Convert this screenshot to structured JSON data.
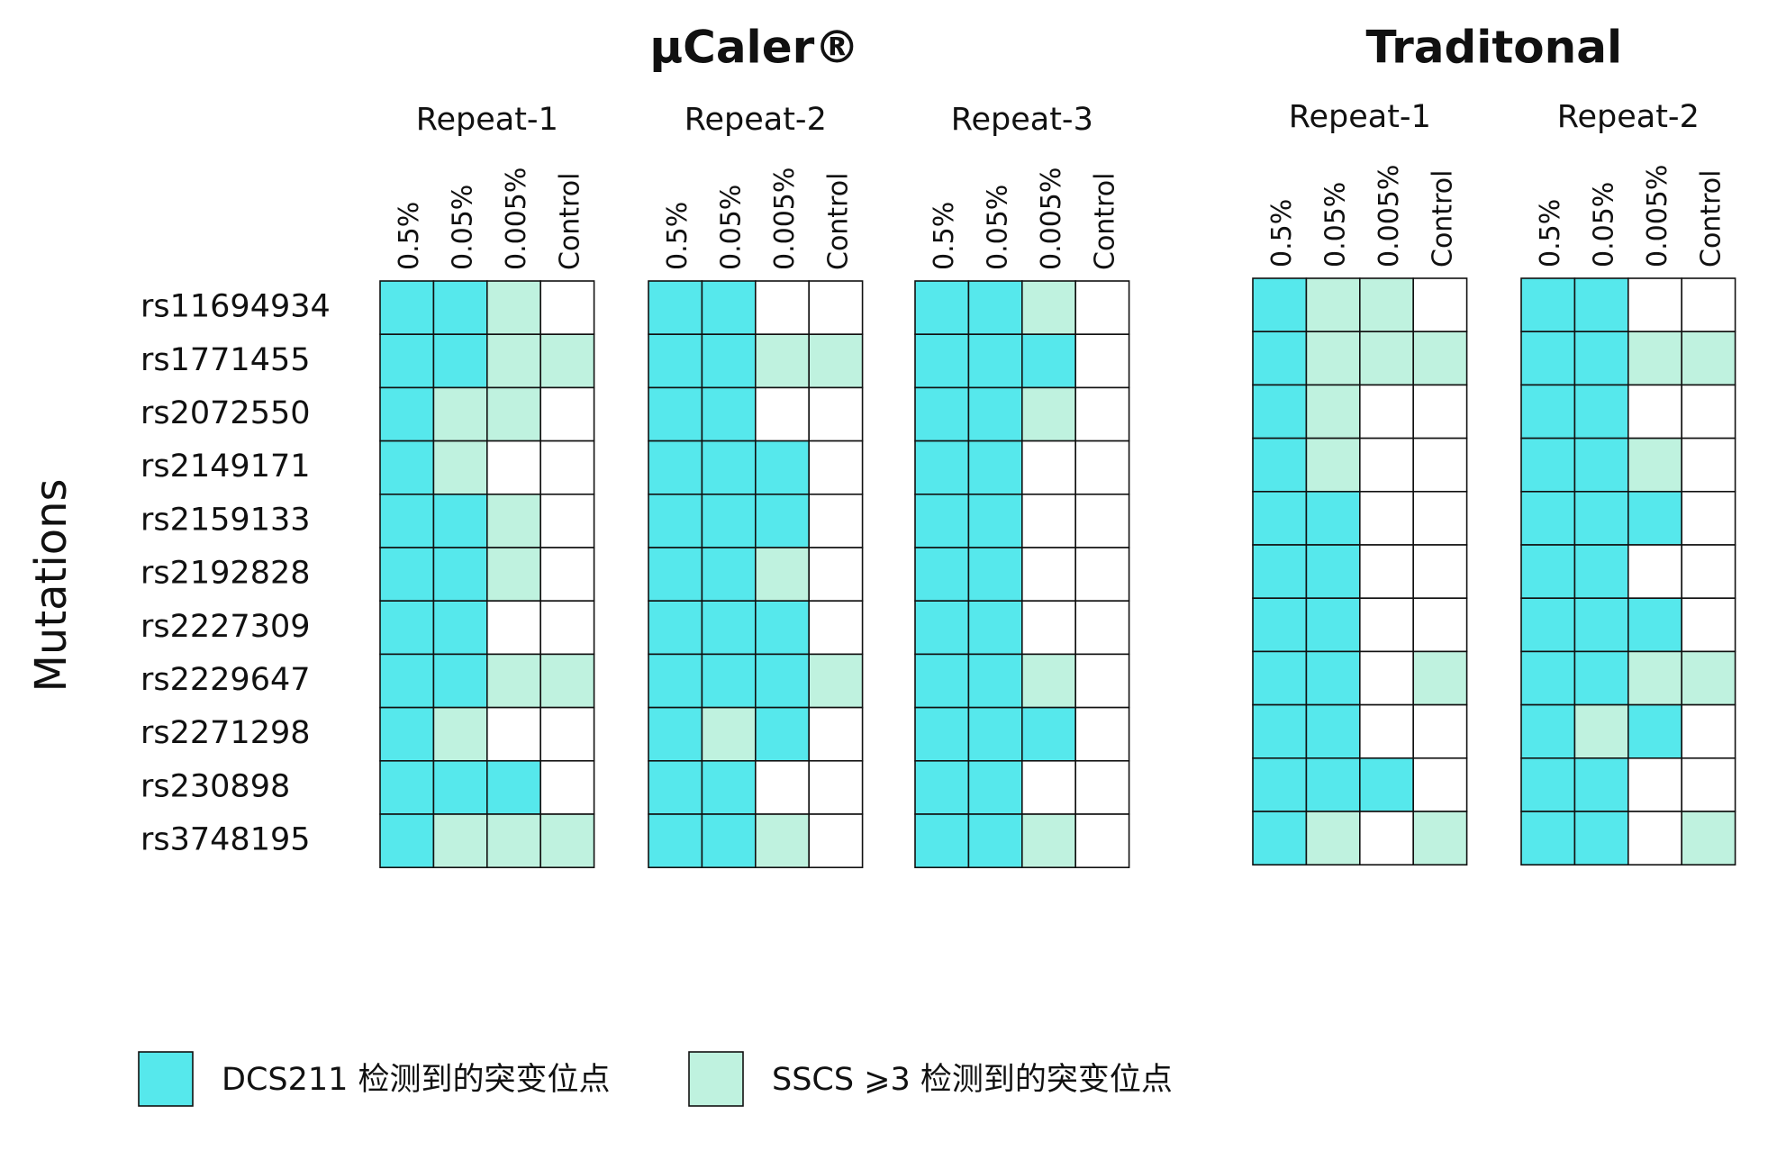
{
  "chart_data": {
    "type": "heatmap",
    "y_label": "Mutations",
    "rows": [
      "rs11694934",
      "rs1771455",
      "rs2072550",
      "rs2149171",
      "rs2159133",
      "rs2192828",
      "rs2227309",
      "rs2229647",
      "rs2271298",
      "rs230898",
      "rs3748195"
    ],
    "legend": [
      {
        "label": "DCS211 检测到的突变位点",
        "color": "#56e8ec"
      },
      {
        "label": "SSCS ⩾3 检测到的突变位点",
        "color": "#bff2df"
      }
    ],
    "groups": [
      {
        "title": "µCaler®",
        "panels": [
          {
            "name": "Repeat-1",
            "columns": [
              "0.5%",
              "0.05%",
              "0.005%",
              "Control"
            ],
            "cells": [
              [
                0,
                0,
                1,
                null
              ],
              [
                0,
                0,
                1,
                1
              ],
              [
                0,
                1,
                1,
                null
              ],
              [
                0,
                1,
                null,
                null
              ],
              [
                0,
                0,
                1,
                null
              ],
              [
                0,
                0,
                1,
                null
              ],
              [
                0,
                0,
                null,
                null
              ],
              [
                0,
                0,
                1,
                1
              ],
              [
                0,
                1,
                null,
                null
              ],
              [
                0,
                0,
                0,
                null
              ],
              [
                0,
                1,
                1,
                1
              ]
            ]
          },
          {
            "name": "Repeat-2",
            "columns": [
              "0.5%",
              "0.05%",
              "0.005%",
              "Control"
            ],
            "cells": [
              [
                0,
                0,
                null,
                null
              ],
              [
                0,
                0,
                1,
                1
              ],
              [
                0,
                0,
                null,
                null
              ],
              [
                0,
                0,
                0,
                null
              ],
              [
                0,
                0,
                0,
                null
              ],
              [
                0,
                0,
                1,
                null
              ],
              [
                0,
                0,
                0,
                null
              ],
              [
                0,
                0,
                0,
                1
              ],
              [
                0,
                1,
                0,
                null
              ],
              [
                0,
                0,
                null,
                null
              ],
              [
                0,
                0,
                1,
                null
              ]
            ]
          },
          {
            "name": "Repeat-3",
            "columns": [
              "0.5%",
              "0.05%",
              "0.005%",
              "Control"
            ],
            "cells": [
              [
                0,
                0,
                1,
                null
              ],
              [
                0,
                0,
                0,
                null
              ],
              [
                0,
                0,
                1,
                null
              ],
              [
                0,
                0,
                null,
                null
              ],
              [
                0,
                0,
                null,
                null
              ],
              [
                0,
                0,
                null,
                null
              ],
              [
                0,
                0,
                null,
                null
              ],
              [
                0,
                0,
                1,
                null
              ],
              [
                0,
                0,
                0,
                null
              ],
              [
                0,
                0,
                null,
                null
              ],
              [
                0,
                0,
                1,
                null
              ]
            ]
          }
        ]
      },
      {
        "title": "Traditonal",
        "panels": [
          {
            "name": "Repeat-1",
            "columns": [
              "0.5%",
              "0.05%",
              "0.005%",
              "Control"
            ],
            "cells": [
              [
                0,
                1,
                1,
                null
              ],
              [
                0,
                1,
                1,
                1
              ],
              [
                0,
                1,
                null,
                null
              ],
              [
                0,
                1,
                null,
                null
              ],
              [
                0,
                0,
                null,
                null
              ],
              [
                0,
                0,
                null,
                null
              ],
              [
                0,
                0,
                null,
                null
              ],
              [
                0,
                0,
                null,
                1
              ],
              [
                0,
                0,
                null,
                null
              ],
              [
                0,
                0,
                0,
                null
              ],
              [
                0,
                1,
                null,
                1
              ]
            ]
          },
          {
            "name": "Repeat-2",
            "columns": [
              "0.5%",
              "0.05%",
              "0.005%",
              "Control"
            ],
            "cells": [
              [
                0,
                0,
                null,
                null
              ],
              [
                0,
                0,
                1,
                1
              ],
              [
                0,
                0,
                null,
                null
              ],
              [
                0,
                0,
                1,
                null
              ],
              [
                0,
                0,
                0,
                null
              ],
              [
                0,
                0,
                null,
                null
              ],
              [
                0,
                0,
                0,
                null
              ],
              [
                0,
                0,
                1,
                1
              ],
              [
                0,
                1,
                0,
                null
              ],
              [
                0,
                0,
                null,
                null
              ],
              [
                0,
                0,
                null,
                1
              ]
            ]
          }
        ]
      }
    ]
  }
}
